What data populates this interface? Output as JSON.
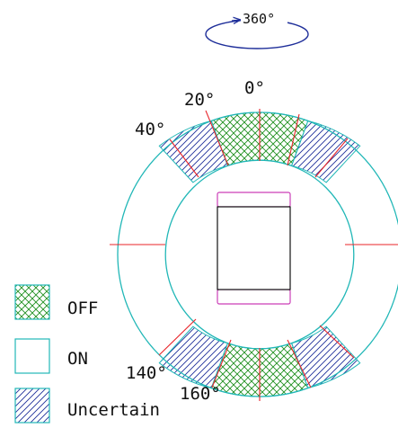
{
  "rotation_label": "360°",
  "angle_labels": {
    "a0": "0°",
    "a20": "20°",
    "a40": "40°",
    "a140": "140°",
    "a160": "160°"
  },
  "legend": {
    "off": "OFF",
    "on": "ON",
    "uncertain": "Uncertain"
  },
  "colors": {
    "ring": "#21b7b7",
    "off_hatch": "#1f8f1f",
    "uncertain_hatch": "#1f2f9a",
    "divider": "#e8242a",
    "device": "#cc3fb8",
    "rotation_arrow": "#1f2f9a"
  }
}
